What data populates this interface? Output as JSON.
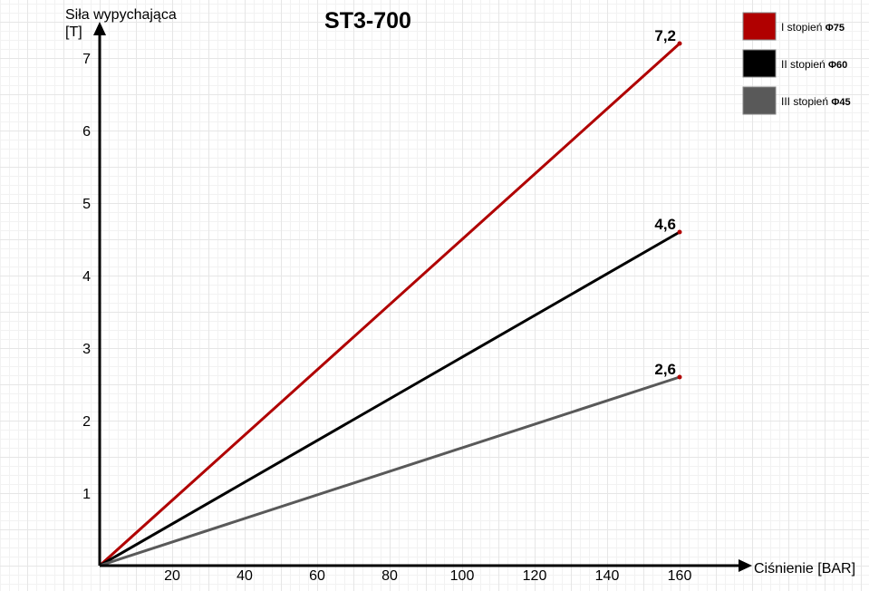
{
  "chart_data": {
    "type": "line",
    "title": "ST3-700",
    "ylabel_line1": "Siła wypychająca",
    "ylabel_line2": "[T]",
    "xlabel": "Ciśnienie [BAR]",
    "x_ticks": [
      "20",
      "40",
      "60",
      "80",
      "100",
      "120",
      "140",
      "160"
    ],
    "y_ticks": [
      "1",
      "2",
      "3",
      "4",
      "5",
      "6",
      "7"
    ],
    "xlim": [
      0,
      180
    ],
    "ylim": [
      0,
      7.4
    ],
    "grid": true,
    "legend_position": "top-right",
    "series": [
      {
        "name": "I stopień",
        "symbol": "Φ75",
        "color": "#b00000",
        "x": [
          0,
          160
        ],
        "y": [
          0,
          7.2
        ],
        "end_label": "7,2"
      },
      {
        "name": "II stopień",
        "symbol": "Φ60",
        "color": "#000000",
        "x": [
          0,
          160
        ],
        "y": [
          0,
          4.6
        ],
        "end_label": "4,6"
      },
      {
        "name": "III stopień",
        "symbol": "Φ45",
        "color": "#595959",
        "x": [
          0,
          160
        ],
        "y": [
          0,
          2.6
        ],
        "end_label": "2,6"
      }
    ]
  }
}
